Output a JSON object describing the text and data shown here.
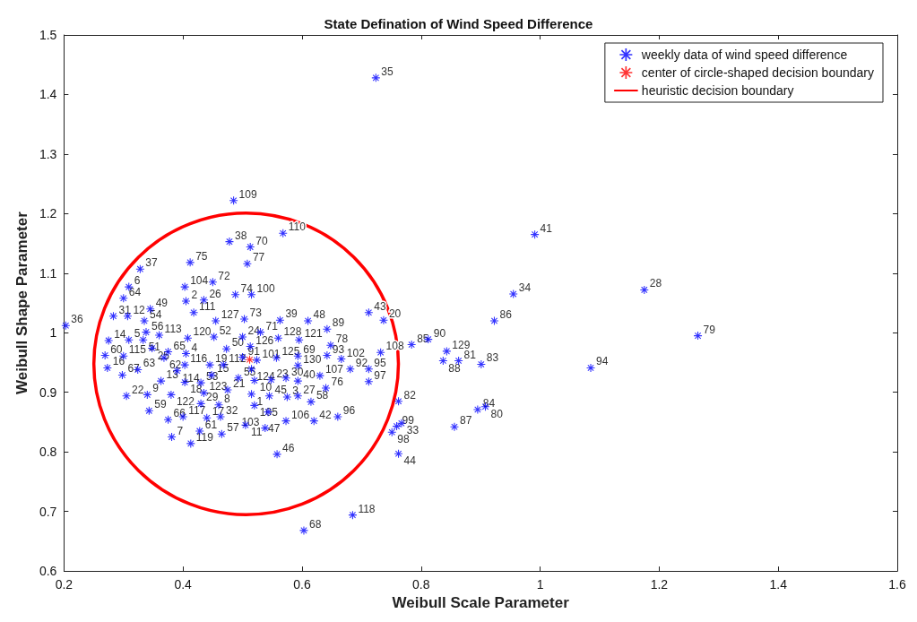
{
  "chart_data": {
    "type": "scatter",
    "title": "State Defination of Wind Speed Difference",
    "xlabel": "Weibull Scale Parameter",
    "ylabel": "Weibull Shape Parameter",
    "xlim": [
      0.2,
      1.6
    ],
    "xticks": [
      0.2,
      0.4,
      0.6,
      0.8,
      1,
      1.2,
      1.4,
      1.6
    ],
    "ylim": [
      0.6,
      1.5
    ],
    "yticks": [
      0.6,
      0.7,
      0.8,
      0.9,
      1,
      1.1,
      1.2,
      1.3,
      1.4,
      1.5
    ],
    "grid": false,
    "legend": "top right",
    "series": [
      {
        "name": "weekly data of wind speed difference",
        "color": "#0000ff",
        "marker": "star",
        "x": [
          0.724,
          0.203,
          0.485,
          0.568,
          0.478,
          0.513,
          0.508,
          0.412,
          0.328,
          0.309,
          0.3,
          0.403,
          0.45,
          0.405,
          0.435,
          0.418,
          0.488,
          0.515,
          0.455,
          0.503,
          0.345,
          0.283,
          0.307,
          0.335,
          0.338,
          0.36,
          0.408,
          0.452,
          0.275,
          0.309,
          0.333,
          0.348,
          0.375,
          0.405,
          0.473,
          0.269,
          0.3,
          0.368,
          0.273,
          0.324,
          0.403,
          0.445,
          0.468,
          0.298,
          0.39,
          0.363,
          0.448,
          0.493,
          0.43,
          0.403,
          0.305,
          0.34,
          0.38,
          0.435,
          0.475,
          0.43,
          0.46,
          0.343,
          0.375,
          0.4,
          0.44,
          0.463,
          0.381,
          0.428,
          0.465,
          0.413,
          0.563,
          0.61,
          0.642,
          0.5,
          0.53,
          0.56,
          0.595,
          0.648,
          0.513,
          0.5,
          0.524,
          0.557,
          0.593,
          0.642,
          0.666,
          0.515,
          0.593,
          0.681,
          0.712,
          0.63,
          0.52,
          0.548,
          0.573,
          0.593,
          0.712,
          0.64,
          0.515,
          0.545,
          0.593,
          0.615,
          0.575,
          0.52,
          0.543,
          0.62,
          0.66,
          0.573,
          0.505,
          0.538,
          0.558,
          0.712,
          0.737,
          0.732,
          0.784,
          0.812,
          0.843,
          0.837,
          0.863,
          0.901,
          0.923,
          0.955,
          0.991,
          1.175,
          1.265,
          1.085,
          0.762,
          0.759,
          0.767,
          0.751,
          0.762,
          0.895,
          0.908,
          0.856,
          0.603,
          0.685
        ],
        "values": [
          1.428,
          1.012,
          1.222,
          1.167,
          1.153,
          1.144,
          1.116,
          1.118,
          1.107,
          1.077,
          1.058,
          1.077,
          1.085,
          1.053,
          1.055,
          1.034,
          1.064,
          1.064,
          1.02,
          1.023,
          1.04,
          1.028,
          1.028,
          1.02,
          1.001,
          0.996,
          0.991,
          0.993,
          0.987,
          0.988,
          0.988,
          0.974,
          0.968,
          0.965,
          0.973,
          0.962,
          0.961,
          0.958,
          0.941,
          0.938,
          0.946,
          0.946,
          0.946,
          0.929,
          0.936,
          0.919,
          0.929,
          0.924,
          0.916,
          0.917,
          0.894,
          0.896,
          0.896,
          0.899,
          0.904,
          0.881,
          0.879,
          0.869,
          0.854,
          0.859,
          0.857,
          0.859,
          0.825,
          0.835,
          0.83,
          0.814,
          1.021,
          1.02,
          1.006,
          0.993,
          1.001,
          0.991,
          0.988,
          0.979,
          0.977,
          0.959,
          0.954,
          0.958,
          0.961,
          0.962,
          0.956,
          0.939,
          0.945,
          0.939,
          0.939,
          0.928,
          0.92,
          0.921,
          0.924,
          0.919,
          0.918,
          0.907,
          0.897,
          0.894,
          0.894,
          0.884,
          0.892,
          0.878,
          0.867,
          0.852,
          0.859,
          0.852,
          0.845,
          0.84,
          0.796,
          1.034,
          1.021,
          0.967,
          0.98,
          0.989,
          0.969,
          0.953,
          0.953,
          0.947,
          1.02,
          1.065,
          1.165,
          1.072,
          0.995,
          0.941,
          0.885,
          0.843,
          0.848,
          0.833,
          0.797,
          0.871,
          0.876,
          0.842,
          0.668,
          0.694
        ]
      },
      {
        "name": "center of circle-shaped decision boundary",
        "color": "#ff0000",
        "marker": "star",
        "x": [
          0.512
        ],
        "values": [
          0.955
        ]
      },
      {
        "name": "heuristic decision boundary",
        "type": "line",
        "color": "#ff0000",
        "marker": "none",
        "line_style": "solid"
      }
    ],
    "annotations": [
      {
        "text": "35",
        "x": 0.724,
        "y": 1.428
      },
      {
        "text": "36",
        "x": 0.203,
        "y": 1.012
      },
      {
        "text": "109",
        "x": 0.485,
        "y": 1.222
      },
      {
        "text": "110",
        "x": 0.568,
        "y": 1.167
      },
      {
        "text": "38",
        "x": 0.478,
        "y": 1.153
      },
      {
        "text": "70",
        "x": 0.513,
        "y": 1.144
      },
      {
        "text": "77",
        "x": 0.508,
        "y": 1.116
      },
      {
        "text": "75",
        "x": 0.412,
        "y": 1.118
      },
      {
        "text": "37",
        "x": 0.328,
        "y": 1.107
      },
      {
        "text": "6",
        "x": 0.309,
        "y": 1.077
      },
      {
        "text": "64",
        "x": 0.3,
        "y": 1.058
      },
      {
        "text": "104",
        "x": 0.403,
        "y": 1.077
      },
      {
        "text": "72",
        "x": 0.45,
        "y": 1.085
      },
      {
        "text": "2",
        "x": 0.405,
        "y": 1.053
      },
      {
        "text": "26",
        "x": 0.435,
        "y": 1.055
      },
      {
        "text": "111",
        "x": 0.418,
        "y": 1.034
      },
      {
        "text": "74",
        "x": 0.488,
        "y": 1.064
      },
      {
        "text": "100",
        "x": 0.515,
        "y": 1.064
      },
      {
        "text": "127",
        "x": 0.455,
        "y": 1.02
      },
      {
        "text": "73",
        "x": 0.503,
        "y": 1.023
      },
      {
        "text": "49",
        "x": 0.345,
        "y": 1.04
      },
      {
        "text": "31",
        "x": 0.283,
        "y": 1.028
      },
      {
        "text": "12",
        "x": 0.307,
        "y": 1.028
      },
      {
        "text": "54",
        "x": 0.335,
        "y": 1.02
      },
      {
        "text": "56",
        "x": 0.338,
        "y": 1.001
      },
      {
        "text": "113",
        "x": 0.36,
        "y": 0.996
      },
      {
        "text": "120",
        "x": 0.408,
        "y": 0.991
      },
      {
        "text": "52",
        "x": 0.452,
        "y": 0.993
      },
      {
        "text": "14",
        "x": 0.275,
        "y": 0.987
      },
      {
        "text": "5",
        "x": 0.309,
        "y": 0.988
      },
      {
        "text": "51",
        "x": 0.333,
        "y": 0.988
      },
      {
        "text": "25",
        "x": 0.348,
        "y": 0.974
      },
      {
        "text": "65",
        "x": 0.375,
        "y": 0.968
      },
      {
        "text": "4",
        "x": 0.405,
        "y": 0.965
      },
      {
        "text": "50",
        "x": 0.473,
        "y": 0.973
      },
      {
        "text": "60",
        "x": 0.269,
        "y": 0.962
      },
      {
        "text": "115",
        "x": 0.3,
        "y": 0.961
      },
      {
        "text": "62",
        "x": 0.368,
        "y": 0.958
      },
      {
        "text": "16",
        "x": 0.273,
        "y": 0.941
      },
      {
        "text": "63",
        "x": 0.324,
        "y": 0.938
      },
      {
        "text": "116",
        "x": 0.403,
        "y": 0.946
      },
      {
        "text": "19",
        "x": 0.445,
        "y": 0.946
      },
      {
        "text": "112",
        "x": 0.468,
        "y": 0.946
      },
      {
        "text": "67",
        "x": 0.298,
        "y": 0.929
      },
      {
        "text": "114",
        "x": 0.39,
        "y": 0.936
      },
      {
        "text": "13",
        "x": 0.363,
        "y": 0.919
      },
      {
        "text": "15",
        "x": 0.448,
        "y": 0.929
      },
      {
        "text": "55",
        "x": 0.493,
        "y": 0.924
      },
      {
        "text": "53",
        "x": 0.43,
        "y": 0.916
      },
      {
        "text": "18",
        "x": 0.403,
        "y": 0.917
      },
      {
        "text": "22",
        "x": 0.305,
        "y": 0.894
      },
      {
        "text": "9",
        "x": 0.34,
        "y": 0.896
      },
      {
        "text": "122",
        "x": 0.38,
        "y": 0.896
      },
      {
        "text": "123",
        "x": 0.435,
        "y": 0.899
      },
      {
        "text": "21",
        "x": 0.475,
        "y": 0.904
      },
      {
        "text": "29",
        "x": 0.43,
        "y": 0.881
      },
      {
        "text": "8",
        "x": 0.46,
        "y": 0.879
      },
      {
        "text": "59",
        "x": 0.343,
        "y": 0.869
      },
      {
        "text": "66",
        "x": 0.375,
        "y": 0.854
      },
      {
        "text": "117",
        "x": 0.4,
        "y": 0.859
      },
      {
        "text": "17",
        "x": 0.44,
        "y": 0.857
      },
      {
        "text": "32",
        "x": 0.463,
        "y": 0.859
      },
      {
        "text": "7",
        "x": 0.381,
        "y": 0.825
      },
      {
        "text": "61",
        "x": 0.428,
        "y": 0.835
      },
      {
        "text": "57",
        "x": 0.465,
        "y": 0.83
      },
      {
        "text": "119",
        "x": 0.413,
        "y": 0.814
      },
      {
        "text": "39",
        "x": 0.563,
        "y": 1.021
      },
      {
        "text": "48",
        "x": 0.61,
        "y": 1.02
      },
      {
        "text": "89",
        "x": 0.642,
        "y": 1.006
      },
      {
        "text": "24",
        "x": 0.5,
        "y": 0.993
      },
      {
        "text": "71",
        "x": 0.53,
        "y": 1.001
      },
      {
        "text": "128",
        "x": 0.56,
        "y": 0.991
      },
      {
        "text": "121",
        "x": 0.595,
        "y": 0.988
      },
      {
        "text": "78",
        "x": 0.648,
        "y": 0.979
      },
      {
        "text": "126",
        "x": 0.513,
        "y": 0.977
      },
      {
        "text": "91",
        "x": 0.5,
        "y": 0.959
      },
      {
        "text": "101",
        "x": 0.524,
        "y": 0.954
      },
      {
        "text": "125",
        "x": 0.557,
        "y": 0.958
      },
      {
        "text": "69",
        "x": 0.593,
        "y": 0.961
      },
      {
        "text": "93",
        "x": 0.642,
        "y": 0.962
      },
      {
        "text": "102",
        "x": 0.666,
        "y": 0.956
      },
      {
        "text": "124",
        "x": 0.515,
        "y": 0.939
      },
      {
        "text": "130",
        "x": 0.593,
        "y": 0.945
      },
      {
        "text": "92",
        "x": 0.681,
        "y": 0.939
      },
      {
        "text": "95",
        "x": 0.712,
        "y": 0.939
      },
      {
        "text": "107",
        "x": 0.63,
        "y": 0.928
      },
      {
        "text": "10",
        "x": 0.52,
        "y": 0.92
      },
      {
        "text": "23",
        "x": 0.548,
        "y": 0.921
      },
      {
        "text": "30",
        "x": 0.573,
        "y": 0.924
      },
      {
        "text": "40",
        "x": 0.593,
        "y": 0.919
      },
      {
        "text": "97",
        "x": 0.712,
        "y": 0.918
      },
      {
        "text": "76",
        "x": 0.64,
        "y": 0.907
      },
      {
        "text": "1",
        "x": 0.515,
        "y": 0.897
      },
      {
        "text": "45",
        "x": 0.545,
        "y": 0.894
      },
      {
        "text": "27",
        "x": 0.593,
        "y": 0.894
      },
      {
        "text": "58",
        "x": 0.615,
        "y": 0.884
      },
      {
        "text": "3",
        "x": 0.575,
        "y": 0.892
      },
      {
        "text": "105",
        "x": 0.52,
        "y": 0.878
      },
      {
        "text": "47",
        "x": 0.543,
        "y": 0.867
      },
      {
        "text": "42",
        "x": 0.62,
        "y": 0.852
      },
      {
        "text": "96",
        "x": 0.66,
        "y": 0.859
      },
      {
        "text": "106",
        "x": 0.573,
        "y": 0.852
      },
      {
        "text": "11",
        "x": 0.505,
        "y": 0.845
      },
      {
        "text": "103",
        "x": 0.538,
        "y": 0.84
      },
      {
        "text": "46",
        "x": 0.558,
        "y": 0.796
      },
      {
        "text": "43",
        "x": 0.712,
        "y": 1.034
      },
      {
        "text": "20",
        "x": 0.737,
        "y": 1.021
      },
      {
        "text": "108",
        "x": 0.732,
        "y": 0.967
      },
      {
        "text": "85",
        "x": 0.784,
        "y": 0.98
      },
      {
        "text": "90",
        "x": 0.812,
        "y": 0.989
      },
      {
        "text": "129",
        "x": 0.843,
        "y": 0.969
      },
      {
        "text": "88",
        "x": 0.837,
        "y": 0.953
      },
      {
        "text": "81",
        "x": 0.863,
        "y": 0.953
      },
      {
        "text": "83",
        "x": 0.901,
        "y": 0.947
      },
      {
        "text": "86",
        "x": 0.923,
        "y": 1.02
      },
      {
        "text": "34",
        "x": 0.955,
        "y": 1.065
      },
      {
        "text": "41",
        "x": 0.991,
        "y": 1.165
      },
      {
        "text": "28",
        "x": 1.175,
        "y": 1.072
      },
      {
        "text": "79",
        "x": 1.265,
        "y": 0.995
      },
      {
        "text": "94",
        "x": 1.085,
        "y": 0.941
      },
      {
        "text": "82",
        "x": 0.762,
        "y": 0.885
      },
      {
        "text": "99",
        "x": 0.759,
        "y": 0.843
      },
      {
        "text": "33",
        "x": 0.767,
        "y": 0.848
      },
      {
        "text": "98",
        "x": 0.751,
        "y": 0.833
      },
      {
        "text": "44",
        "x": 0.762,
        "y": 0.797
      },
      {
        "text": "84",
        "x": 0.895,
        "y": 0.871
      },
      {
        "text": "80",
        "x": 0.908,
        "y": 0.876
      },
      {
        "text": "87",
        "x": 0.856,
        "y": 0.842
      },
      {
        "text": "68",
        "x": 0.603,
        "y": 0.668
      },
      {
        "text": "118",
        "x": 0.685,
        "y": 0.694
      }
    ]
  }
}
